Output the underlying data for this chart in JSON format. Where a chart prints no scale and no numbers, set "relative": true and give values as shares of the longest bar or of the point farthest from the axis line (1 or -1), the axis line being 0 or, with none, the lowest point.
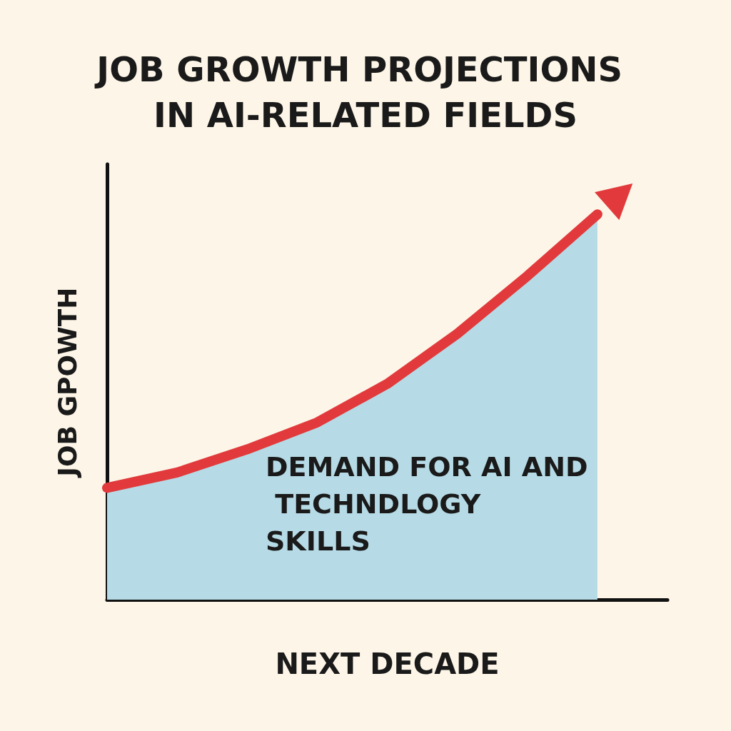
{
  "chart_data": {
    "type": "area",
    "title": "JOB GROWTH PROJECTIONS IN AI-RELATED FIELDS",
    "xlabel": "NEXT DECADE",
    "ylabel": "JOB GPOWTH",
    "annotations": [
      "DEMAND FOR AI AND TECHNDLOGY SKILLS"
    ],
    "relative": true,
    "categories": [
      null,
      null,
      null,
      null,
      null,
      null,
      null,
      null,
      null
    ],
    "series": [
      {
        "color": "#b6dbe6",
        "values": [
          0.29,
          0.33,
          0.39,
          0.46,
          0.56,
          0.69,
          0.84,
          1,
          null
        ]
      },
      {
        "type": "line",
        "color": "#e23a3c",
        "values": [
          0.29,
          0.33,
          0.39,
          0.46,
          0.56,
          0.69,
          0.84,
          1,
          null
        ]
      }
    ],
    "grid": false,
    "line_style": "solid"
  }
}
